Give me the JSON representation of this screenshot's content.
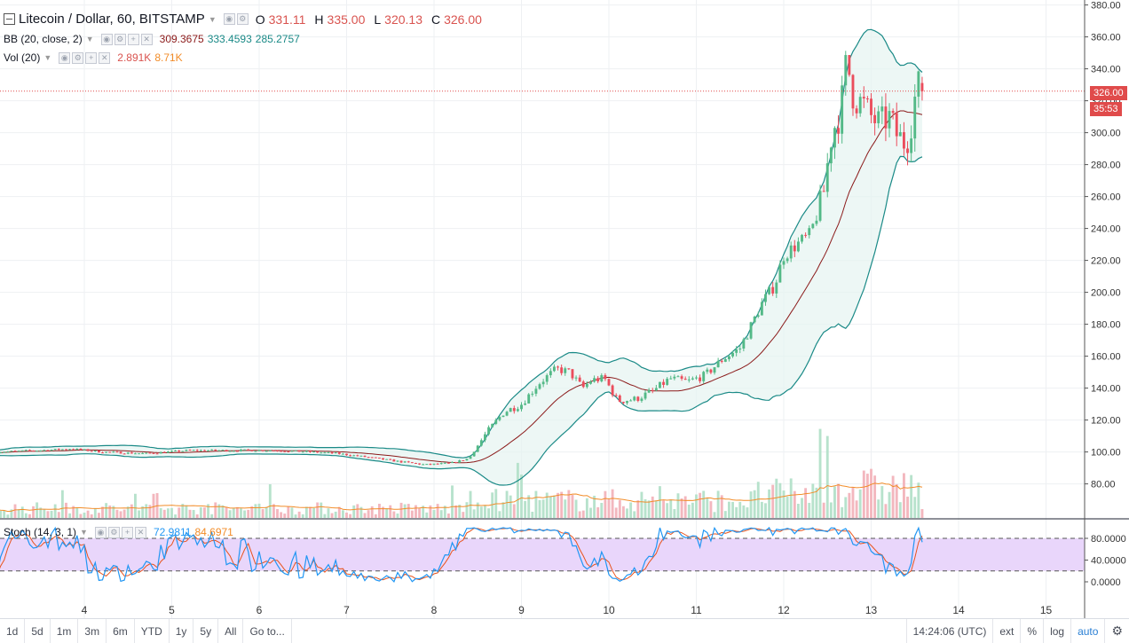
{
  "header": {
    "symbol": "Litecoin / Dollar, 60, BITSTAMP",
    "ohlc": [
      {
        "k": "O",
        "v": "331.11"
      },
      {
        "k": "H",
        "v": "335.00"
      },
      {
        "k": "L",
        "v": "320.13"
      },
      {
        "k": "C",
        "v": "326.00"
      }
    ]
  },
  "indicators": {
    "bb": {
      "label": "BB (20, close, 2)",
      "basis": "309.3675",
      "upper": "333.4593",
      "lower": "285.2757"
    },
    "vol": {
      "label": "Vol (20)",
      "value": "2.891K",
      "ma": "8.71K"
    },
    "stoch": {
      "label": "Stoch (14, 3, 1)",
      "k": "72.9811",
      "d": "84.6971"
    }
  },
  "price_axis": {
    "labels": [
      "380.00",
      "360.00",
      "340.00",
      "320.00",
      "300.00",
      "280.00",
      "260.00",
      "240.00",
      "220.00",
      "200.00",
      "180.00",
      "160.00",
      "140.00",
      "120.00",
      "100.00",
      "80.00"
    ],
    "current_price": "326.00",
    "countdown": "35:53"
  },
  "stoch_axis": {
    "labels": [
      "80.0000",
      "40.0000",
      "0.0000"
    ]
  },
  "time_axis": {
    "labels": [
      "4",
      "5",
      "6",
      "7",
      "8",
      "9",
      "10",
      "11",
      "12",
      "13",
      "14",
      "15"
    ]
  },
  "bottom_bar": {
    "ranges": [
      "1d",
      "5d",
      "1m",
      "3m",
      "6m",
      "YTD",
      "1y",
      "5y",
      "All"
    ],
    "goto": "Go to...",
    "time": "14:24:06 (UTC)",
    "ext": "ext",
    "percent": "%",
    "log": "log",
    "auto": "auto",
    "settings_icon": "gear-icon"
  },
  "colors": {
    "up": "#53b987",
    "down": "#eb4d5c",
    "bb_band": "#1a8a87",
    "bb_basis": "#8b1a1a",
    "vol_ma": "#f28c28",
    "stoch_k": "#2196f3",
    "stoch_d": "#e8541e",
    "stoch_bg": "#e9d6fb"
  },
  "chart_data": {
    "type": "candlestick",
    "title": "Litecoin / Dollar, 60, BITSTAMP",
    "ylim": [
      70,
      380
    ],
    "x_days": [
      "4",
      "5",
      "6",
      "7",
      "8",
      "9",
      "10",
      "11",
      "12",
      "13",
      "14",
      "15"
    ],
    "series_note": "",
    "close_path": [
      [
        3.0,
        100
      ],
      [
        3.5,
        101
      ],
      [
        3.85,
        102
      ],
      [
        4.2,
        100
      ],
      [
        4.7,
        99
      ],
      [
        5.2,
        101
      ],
      [
        5.7,
        101
      ],
      [
        6.2,
        101
      ],
      [
        6.6,
        100
      ],
      [
        6.9,
        99
      ],
      [
        7.2,
        97
      ],
      [
        7.6,
        94
      ],
      [
        7.9,
        92
      ],
      [
        8.2,
        93
      ],
      [
        8.4,
        96
      ],
      [
        8.6,
        112
      ],
      [
        8.8,
        125
      ],
      [
        9.0,
        130
      ],
      [
        9.2,
        143
      ],
      [
        9.4,
        152
      ],
      [
        9.55,
        150
      ],
      [
        9.7,
        140
      ],
      [
        9.8,
        145
      ],
      [
        9.95,
        146
      ],
      [
        10.1,
        132
      ],
      [
        10.3,
        133
      ],
      [
        10.5,
        138
      ],
      [
        10.7,
        146
      ],
      [
        10.9,
        144
      ],
      [
        11.1,
        148
      ],
      [
        11.3,
        158
      ],
      [
        11.5,
        165
      ],
      [
        11.6,
        176
      ],
      [
        11.75,
        193
      ],
      [
        11.9,
        205
      ],
      [
        12.0,
        223
      ],
      [
        12.15,
        230
      ],
      [
        12.3,
        236
      ],
      [
        12.45,
        260
      ],
      [
        12.55,
        300
      ],
      [
        12.65,
        313
      ],
      [
        12.72,
        346
      ],
      [
        12.8,
        322
      ],
      [
        12.9,
        318
      ],
      [
        13.0,
        310
      ],
      [
        13.1,
        305
      ],
      [
        13.2,
        310
      ],
      [
        13.3,
        298
      ],
      [
        13.4,
        293
      ],
      [
        13.48,
        312
      ],
      [
        13.52,
        331
      ],
      [
        13.57,
        326
      ]
    ],
    "last_close": 326.0
  }
}
